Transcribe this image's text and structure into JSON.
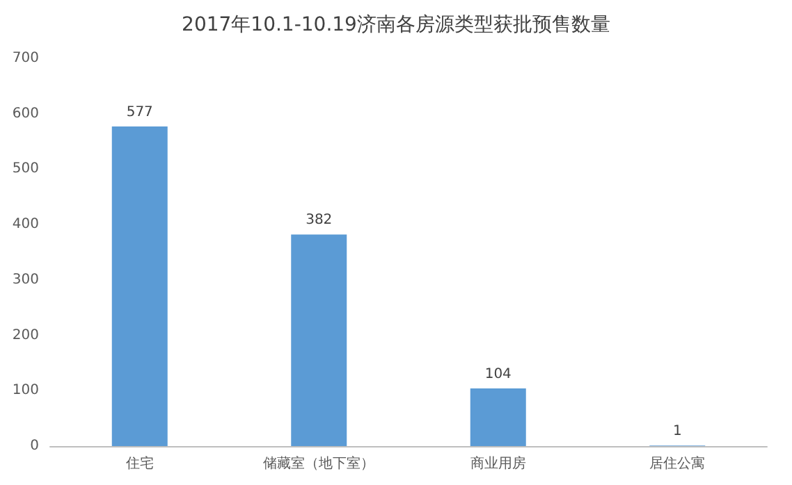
{
  "chart_data": {
    "type": "bar",
    "title": "2017年10.1-10.19济南各房源类型获批预售数量",
    "categories": [
      "住宅",
      "储藏室（地下室）",
      "商业用房",
      "居住公寓"
    ],
    "values": [
      577,
      382,
      104,
      1
    ],
    "color": "#5b9bd5",
    "ylim": [
      0,
      700
    ],
    "yticks": [
      0,
      100,
      200,
      300,
      400,
      500,
      600,
      700
    ],
    "grid": false,
    "data_labels": true
  }
}
